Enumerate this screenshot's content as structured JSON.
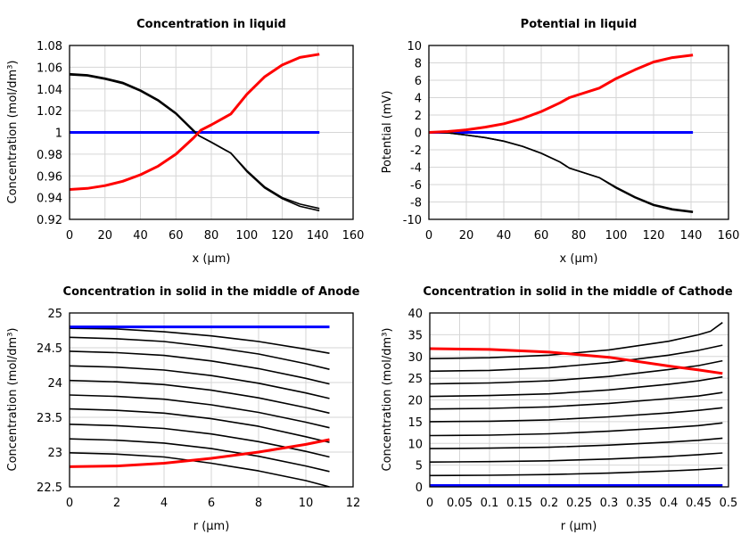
{
  "colors": {
    "initial": "#0000ff",
    "intermediate": "#000000",
    "final": "#ff0000",
    "grid": "#d6d6d6"
  },
  "chart_data": [
    {
      "type": "line",
      "title": "Concentration in liquid",
      "xlabel": "x (µm)",
      "ylabel": "Concentration (mol/dm³)",
      "xlim": [
        0,
        160
      ],
      "ylim": [
        0.92,
        1.08
      ],
      "xticks": [
        0,
        20,
        40,
        60,
        80,
        100,
        120,
        140,
        160
      ],
      "xtick_labels": [
        "0",
        "20",
        "40",
        "60",
        "80",
        "100",
        "120",
        "140",
        "160"
      ],
      "yticks": [
        0.92,
        0.94,
        0.96,
        0.98,
        1,
        1.02,
        1.04,
        1.06,
        1.08
      ],
      "ytick_labels": [
        "0.92",
        "0.94",
        "0.96",
        "0.98",
        "1",
        "1.02",
        "1.04",
        "1.06",
        "1.08"
      ],
      "grid": true,
      "series": [
        {
          "color": "#0000ff",
          "x": [
            0,
            141
          ],
          "y": [
            1,
            1
          ]
        },
        {
          "color": "#000000",
          "x": [
            0,
            10,
            20,
            30,
            40,
            50,
            60,
            70,
            73,
            80,
            91,
            100,
            110,
            120,
            130,
            141
          ],
          "y": [
            1.054,
            1.053,
            1.05,
            1.046,
            1.039,
            1.03,
            1.018,
            1.002,
            0.997,
            0.991,
            0.981,
            0.965,
            0.95,
            0.94,
            0.934,
            0.93
          ]
        },
        {
          "color": "#000000",
          "x": [
            0,
            10,
            20,
            30,
            40,
            50,
            60,
            70,
            73,
            80,
            91,
            100,
            110,
            120,
            130,
            141
          ],
          "y": [
            1.053,
            1.052,
            1.049,
            1.045,
            1.038,
            1.029,
            1.017,
            1.001,
            0.997,
            0.991,
            0.981,
            0.964,
            0.949,
            0.939,
            0.932,
            0.928
          ]
        },
        {
          "color": "#ff0000",
          "x": [
            0,
            10,
            20,
            30,
            40,
            50,
            60,
            70,
            74,
            80,
            91,
            100,
            110,
            120,
            130,
            141
          ],
          "y": [
            0.9475,
            0.9485,
            0.951,
            0.955,
            0.961,
            0.969,
            0.98,
            0.995,
            1.002,
            1.007,
            1.017,
            1.035,
            1.051,
            1.062,
            1.069,
            1.072
          ]
        }
      ]
    },
    {
      "type": "line",
      "title": "Potential in liquid",
      "xlabel": "x (µm)",
      "ylabel": "Potential (mV)",
      "xlim": [
        0,
        160
      ],
      "ylim": [
        -10,
        10
      ],
      "xticks": [
        0,
        20,
        40,
        60,
        80,
        100,
        120,
        140,
        160
      ],
      "xtick_labels": [
        "0",
        "20",
        "40",
        "60",
        "80",
        "100",
        "120",
        "140",
        "160"
      ],
      "yticks": [
        -10,
        -8,
        -6,
        -4,
        -2,
        0,
        2,
        4,
        6,
        8,
        10
      ],
      "ytick_labels": [
        "-10",
        "-8",
        "-6",
        "-4",
        "-2",
        "0",
        "2",
        "4",
        "6",
        "8",
        "10"
      ],
      "grid": true,
      "series": [
        {
          "color": "#0000ff",
          "x": [
            0,
            141
          ],
          "y": [
            0,
            0
          ]
        },
        {
          "color": "#000000",
          "x": [
            0,
            10,
            20,
            30,
            40,
            50,
            60,
            70,
            75,
            91,
            100,
            110,
            120,
            130,
            141
          ],
          "y": [
            0,
            -0.05,
            -0.3,
            -0.6,
            -1.0,
            -1.6,
            -2.4,
            -3.4,
            -4.1,
            -5.2,
            -6.3,
            -7.4,
            -8.3,
            -8.8,
            -9.1
          ]
        },
        {
          "color": "#000000",
          "x": [
            0,
            10,
            20,
            30,
            40,
            50,
            60,
            70,
            75,
            91,
            100,
            110,
            120,
            130,
            141
          ],
          "y": [
            0,
            -0.05,
            -0.3,
            -0.6,
            -1.0,
            -1.6,
            -2.4,
            -3.4,
            -4.1,
            -5.2,
            -6.4,
            -7.5,
            -8.4,
            -8.9,
            -9.2
          ]
        },
        {
          "color": "#ff0000",
          "x": [
            0,
            10,
            20,
            30,
            40,
            50,
            60,
            70,
            75,
            91,
            100,
            110,
            120,
            130,
            141
          ],
          "y": [
            0,
            0.1,
            0.3,
            0.6,
            1.0,
            1.6,
            2.4,
            3.4,
            4.0,
            5.1,
            6.2,
            7.2,
            8.1,
            8.6,
            8.9
          ]
        }
      ]
    },
    {
      "type": "line",
      "title": "Concentration in solid in the middle of Anode",
      "xlabel": "r (µm)",
      "ylabel": "Concentration (mol/dm³)",
      "xlim": [
        0,
        12
      ],
      "ylim": [
        22.5,
        25
      ],
      "xticks": [
        0,
        2,
        4,
        6,
        8,
        10,
        12
      ],
      "xtick_labels": [
        "0",
        "2",
        "4",
        "6",
        "8",
        "10",
        "12"
      ],
      "yticks": [
        22.5,
        23,
        23.5,
        24,
        24.5,
        25
      ],
      "ytick_labels": [
        "22.5",
        "23",
        "23.5",
        "24",
        "24.5",
        "25"
      ],
      "grid": true,
      "series": [
        {
          "color": "#000000",
          "x": [
            0,
            2,
            4,
            6,
            8,
            10,
            11
          ],
          "y": [
            24.78,
            24.77,
            24.73,
            24.67,
            24.59,
            24.48,
            24.42
          ]
        },
        {
          "color": "#000000",
          "x": [
            0,
            2,
            4,
            6,
            8,
            10,
            11
          ],
          "y": [
            24.65,
            24.63,
            24.59,
            24.51,
            24.41,
            24.27,
            24.19
          ]
        },
        {
          "color": "#000000",
          "x": [
            0,
            2,
            4,
            6,
            8,
            10,
            11
          ],
          "y": [
            24.45,
            24.43,
            24.39,
            24.31,
            24.2,
            24.06,
            23.98
          ]
        },
        {
          "color": "#000000",
          "x": [
            0,
            2,
            4,
            6,
            8,
            10,
            11
          ],
          "y": [
            24.24,
            24.22,
            24.18,
            24.1,
            23.99,
            23.85,
            23.77
          ]
        },
        {
          "color": "#000000",
          "x": [
            0,
            2,
            4,
            6,
            8,
            10,
            11
          ],
          "y": [
            24.03,
            24.01,
            23.97,
            23.89,
            23.78,
            23.64,
            23.56
          ]
        },
        {
          "color": "#000000",
          "x": [
            0,
            2,
            4,
            6,
            8,
            10,
            11
          ],
          "y": [
            23.82,
            23.8,
            23.76,
            23.68,
            23.57,
            23.43,
            23.35
          ]
        },
        {
          "color": "#000000",
          "x": [
            0,
            2,
            4,
            6,
            8,
            10,
            11
          ],
          "y": [
            23.62,
            23.6,
            23.56,
            23.48,
            23.37,
            23.22,
            23.14
          ]
        },
        {
          "color": "#000000",
          "x": [
            0,
            2,
            4,
            6,
            8,
            10,
            11
          ],
          "y": [
            23.4,
            23.38,
            23.34,
            23.26,
            23.15,
            23.01,
            22.93
          ]
        },
        {
          "color": "#000000",
          "x": [
            0,
            2,
            4,
            6,
            8,
            10,
            11
          ],
          "y": [
            23.19,
            23.17,
            23.13,
            23.05,
            22.94,
            22.8,
            22.72
          ]
        },
        {
          "color": "#000000",
          "x": [
            0,
            2,
            4,
            6,
            8,
            10,
            11
          ],
          "y": [
            22.99,
            22.97,
            22.93,
            22.84,
            22.73,
            22.59,
            22.5
          ]
        },
        {
          "color": "#0000ff",
          "x": [
            0,
            11
          ],
          "y": [
            24.8,
            24.8
          ]
        },
        {
          "color": "#ff0000",
          "x": [
            0,
            2,
            4,
            6,
            8,
            10,
            11
          ],
          "y": [
            22.79,
            22.8,
            22.84,
            22.91,
            23.0,
            23.11,
            23.18
          ]
        }
      ]
    },
    {
      "type": "line",
      "title": "Concentration in solid in the middle of Cathode",
      "xlabel": "r (µm)",
      "ylabel": "Concentration (mol/dm³)",
      "xlim": [
        0,
        0.5
      ],
      "ylim": [
        0,
        40
      ],
      "xticks": [
        0,
        0.05,
        0.1,
        0.15,
        0.2,
        0.25,
        0.3,
        0.35,
        0.4,
        0.45,
        0.5
      ],
      "xtick_labels": [
        "0",
        "0.05",
        "0.1",
        "0.15",
        "0.2",
        "0.25",
        "0.3",
        "0.35",
        "0.4",
        "0.45",
        "0.5"
      ],
      "yticks": [
        0,
        5,
        10,
        15,
        20,
        25,
        30,
        35,
        40
      ],
      "ytick_labels": [
        "0",
        "5",
        "10",
        "15",
        "20",
        "25",
        "30",
        "35",
        "40"
      ],
      "grid": true,
      "series": [
        {
          "color": "#000000",
          "x": [
            0,
            0.1,
            0.2,
            0.3,
            0.4,
            0.45,
            0.47,
            0.49
          ],
          "y": [
            29.5,
            29.7,
            30.3,
            31.5,
            33.5,
            35.0,
            35.8,
            37.8
          ]
        },
        {
          "color": "#000000",
          "x": [
            0,
            0.1,
            0.2,
            0.3,
            0.4,
            0.45,
            0.49
          ],
          "y": [
            26.6,
            26.8,
            27.4,
            28.6,
            30.3,
            31.4,
            32.6
          ]
        },
        {
          "color": "#000000",
          "x": [
            0,
            0.1,
            0.2,
            0.3,
            0.4,
            0.45,
            0.49
          ],
          "y": [
            23.7,
            23.9,
            24.4,
            25.4,
            27.0,
            27.9,
            29.0
          ]
        },
        {
          "color": "#000000",
          "x": [
            0,
            0.1,
            0.2,
            0.3,
            0.4,
            0.45,
            0.49
          ],
          "y": [
            20.8,
            21.0,
            21.4,
            22.3,
            23.6,
            24.4,
            25.3
          ]
        },
        {
          "color": "#000000",
          "x": [
            0,
            0.1,
            0.2,
            0.3,
            0.4,
            0.45,
            0.49
          ],
          "y": [
            17.9,
            18.05,
            18.4,
            19.2,
            20.3,
            20.9,
            21.7
          ]
        },
        {
          "color": "#000000",
          "x": [
            0,
            0.1,
            0.2,
            0.3,
            0.4,
            0.45,
            0.49
          ],
          "y": [
            15.0,
            15.1,
            15.4,
            16.1,
            17.0,
            17.6,
            18.2
          ]
        },
        {
          "color": "#000000",
          "x": [
            0,
            0.1,
            0.2,
            0.3,
            0.4,
            0.45,
            0.49
          ],
          "y": [
            11.8,
            11.9,
            12.2,
            12.8,
            13.6,
            14.1,
            14.7
          ]
        },
        {
          "color": "#000000",
          "x": [
            0,
            0.1,
            0.2,
            0.3,
            0.4,
            0.45,
            0.49
          ],
          "y": [
            8.8,
            8.9,
            9.1,
            9.6,
            10.3,
            10.7,
            11.2
          ]
        },
        {
          "color": "#000000",
          "x": [
            0,
            0.1,
            0.2,
            0.3,
            0.4,
            0.45,
            0.49
          ],
          "y": [
            5.7,
            5.8,
            6.0,
            6.4,
            7.0,
            7.4,
            7.8
          ]
        },
        {
          "color": "#000000",
          "x": [
            0,
            0.1,
            0.2,
            0.3,
            0.4,
            0.45,
            0.49
          ],
          "y": [
            2.6,
            2.67,
            2.84,
            3.16,
            3.65,
            3.96,
            4.3
          ]
        },
        {
          "color": "#0000ff",
          "x": [
            0,
            0.49
          ],
          "y": [
            0.3,
            0.3
          ]
        },
        {
          "color": "#ff0000",
          "x": [
            0,
            0.1,
            0.2,
            0.3,
            0.4,
            0.45,
            0.49
          ],
          "y": [
            31.8,
            31.6,
            31.0,
            29.8,
            27.8,
            26.9,
            26.1
          ]
        }
      ]
    }
  ]
}
